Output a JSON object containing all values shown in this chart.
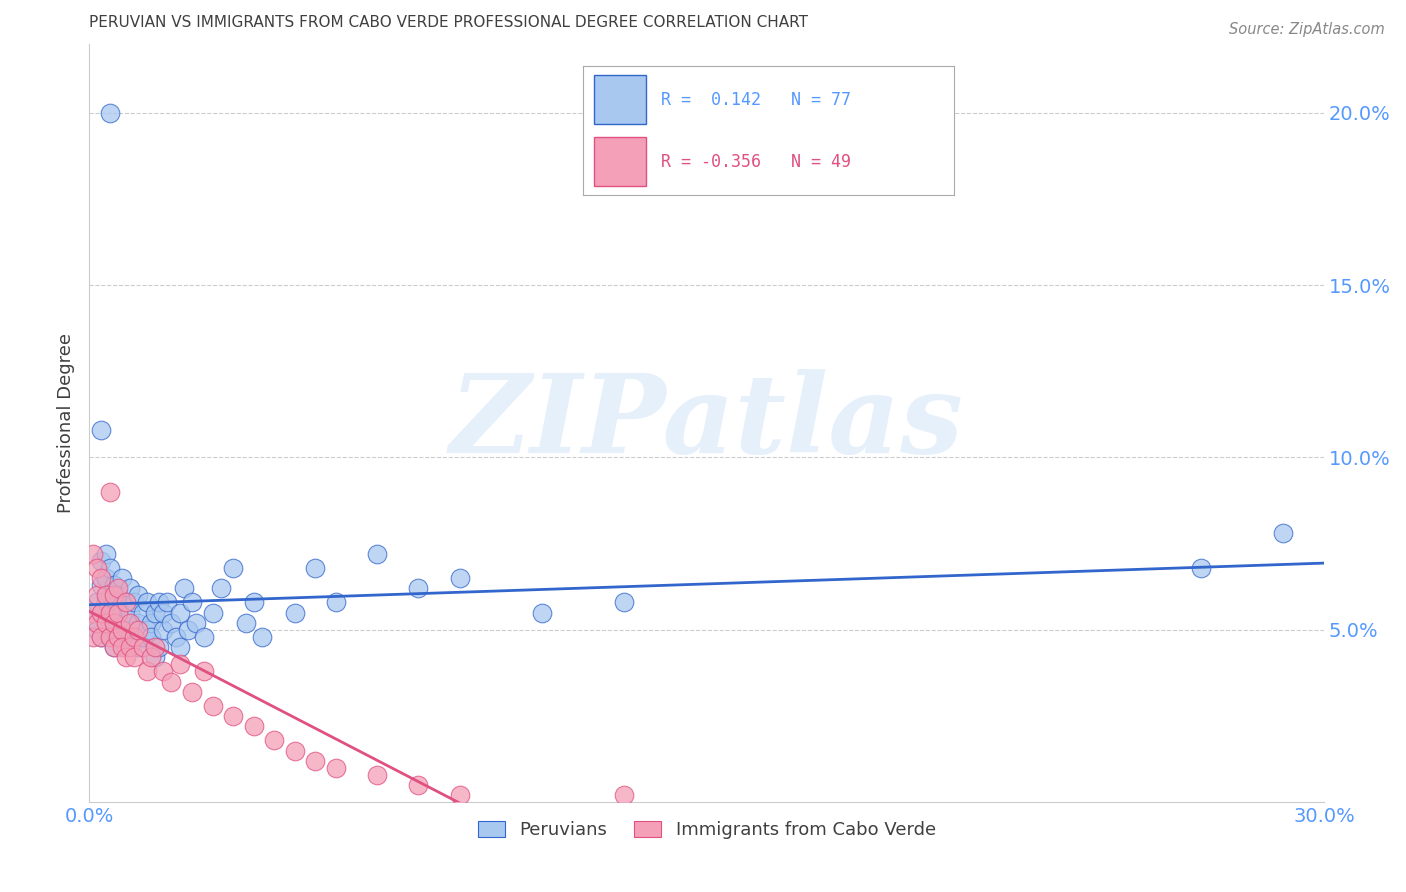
{
  "title": "PERUVIAN VS IMMIGRANTS FROM CABO VERDE PROFESSIONAL DEGREE CORRELATION CHART",
  "source": "Source: ZipAtlas.com",
  "ylabel": "Professional Degree",
  "watermark": "ZIPatlas",
  "blue_label": "Peruvians",
  "pink_label": "Immigrants from Cabo Verde",
  "blue_R": 0.142,
  "blue_N": 77,
  "pink_R": -0.356,
  "pink_N": 49,
  "xlim": [
    0.0,
    0.3
  ],
  "ylim": [
    0.0,
    0.22
  ],
  "yticks": [
    0.05,
    0.1,
    0.15,
    0.2
  ],
  "xticks": [
    0.0,
    0.05,
    0.1,
    0.15,
    0.2,
    0.25,
    0.3
  ],
  "blue_color": "#a8c8f0",
  "blue_line_color": "#3366cc",
  "pink_color": "#f4a0b8",
  "pink_line_color": "#e05080",
  "title_color": "#404040",
  "axis_label_color": "#5599ff",
  "grid_color": "#cccccc",
  "background_color": "#ffffff",
  "blue_x": [
    0.001,
    0.002,
    0.002,
    0.003,
    0.003,
    0.003,
    0.003,
    0.004,
    0.004,
    0.004,
    0.005,
    0.005,
    0.005,
    0.005,
    0.005,
    0.006,
    0.006,
    0.006,
    0.006,
    0.007,
    0.007,
    0.007,
    0.008,
    0.008,
    0.008,
    0.008,
    0.009,
    0.009,
    0.009,
    0.01,
    0.01,
    0.01,
    0.011,
    0.011,
    0.012,
    0.012,
    0.012,
    0.013,
    0.013,
    0.014,
    0.014,
    0.015,
    0.015,
    0.016,
    0.016,
    0.017,
    0.017,
    0.018,
    0.018,
    0.019,
    0.02,
    0.021,
    0.022,
    0.022,
    0.023,
    0.024,
    0.025,
    0.026,
    0.028,
    0.03,
    0.032,
    0.035,
    0.038,
    0.04,
    0.042,
    0.05,
    0.055,
    0.06,
    0.07,
    0.08,
    0.09,
    0.11,
    0.13,
    0.27,
    0.29,
    0.005,
    0.003
  ],
  "blue_y": [
    0.053,
    0.05,
    0.058,
    0.055,
    0.063,
    0.048,
    0.07,
    0.058,
    0.065,
    0.072,
    0.048,
    0.055,
    0.052,
    0.06,
    0.068,
    0.05,
    0.055,
    0.063,
    0.045,
    0.052,
    0.06,
    0.058,
    0.05,
    0.055,
    0.048,
    0.065,
    0.052,
    0.058,
    0.045,
    0.055,
    0.048,
    0.062,
    0.05,
    0.058,
    0.052,
    0.045,
    0.06,
    0.048,
    0.055,
    0.05,
    0.058,
    0.052,
    0.048,
    0.055,
    0.042,
    0.058,
    0.045,
    0.05,
    0.055,
    0.058,
    0.052,
    0.048,
    0.055,
    0.045,
    0.062,
    0.05,
    0.058,
    0.052,
    0.048,
    0.055,
    0.062,
    0.068,
    0.052,
    0.058,
    0.048,
    0.055,
    0.068,
    0.058,
    0.072,
    0.062,
    0.065,
    0.055,
    0.058,
    0.068,
    0.078,
    0.2,
    0.108
  ],
  "pink_x": [
    0.001,
    0.001,
    0.001,
    0.002,
    0.002,
    0.002,
    0.003,
    0.003,
    0.003,
    0.004,
    0.004,
    0.005,
    0.005,
    0.005,
    0.006,
    0.006,
    0.006,
    0.007,
    0.007,
    0.007,
    0.008,
    0.008,
    0.009,
    0.009,
    0.01,
    0.01,
    0.011,
    0.011,
    0.012,
    0.013,
    0.014,
    0.015,
    0.016,
    0.018,
    0.02,
    0.022,
    0.025,
    0.028,
    0.03,
    0.035,
    0.04,
    0.045,
    0.05,
    0.055,
    0.06,
    0.07,
    0.08,
    0.09,
    0.13
  ],
  "pink_y": [
    0.055,
    0.048,
    0.072,
    0.06,
    0.052,
    0.068,
    0.055,
    0.048,
    0.065,
    0.052,
    0.06,
    0.09,
    0.055,
    0.048,
    0.052,
    0.06,
    0.045,
    0.055,
    0.048,
    0.062,
    0.05,
    0.045,
    0.058,
    0.042,
    0.052,
    0.045,
    0.048,
    0.042,
    0.05,
    0.045,
    0.038,
    0.042,
    0.045,
    0.038,
    0.035,
    0.04,
    0.032,
    0.038,
    0.028,
    0.025,
    0.022,
    0.018,
    0.015,
    0.012,
    0.01,
    0.008,
    0.005,
    0.002,
    0.002
  ]
}
